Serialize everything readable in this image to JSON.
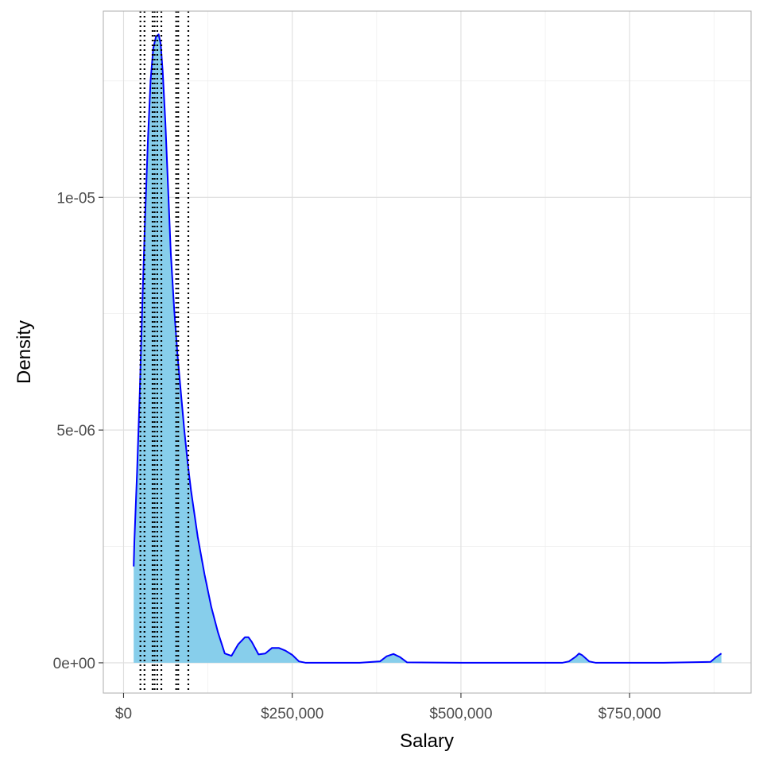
{
  "chart_data": {
    "type": "area",
    "title": "",
    "xlabel": "Salary",
    "ylabel": "Density",
    "xlim": [
      -30000,
      930000
    ],
    "ylim": [
      -6.5e-07,
      1.4e-05
    ],
    "x_ticks": [
      {
        "value": 0,
        "label": "$0"
      },
      {
        "value": 250000,
        "label": "$250,000"
      },
      {
        "value": 500000,
        "label": "$500,000"
      },
      {
        "value": 750000,
        "label": "$750,000"
      }
    ],
    "y_ticks": [
      {
        "value": 0,
        "label": "0e+00"
      },
      {
        "value": 5e-06,
        "label": "5e-06"
      },
      {
        "value": 1e-05,
        "label": "1e-05"
      }
    ],
    "grid": true,
    "fill_color": "#87ceeb",
    "line_color": "#0000ff",
    "series": [
      {
        "x": [
          15000,
          16000,
          20000,
          24000,
          28000,
          32000,
          36000,
          40000,
          44000,
          48000,
          52000,
          55000,
          58000,
          62000,
          66000,
          70000,
          75000,
          80000,
          85000,
          90000,
          95000,
          100000,
          110000,
          120000,
          130000,
          140000,
          150000,
          160000,
          170000,
          180000,
          185000,
          190000,
          200000,
          210000,
          220000,
          230000,
          240000,
          250000,
          260000,
          270000,
          300000,
          350000,
          380000,
          390000,
          400000,
          410000,
          420000,
          500000,
          600000,
          650000,
          660000,
          670000,
          675000,
          680000,
          690000,
          700000,
          800000,
          870000,
          878000,
          886000
        ],
        "y": [
          2.07e-06,
          2.6e-06,
          4.1e-06,
          5.8e-06,
          7.8e-06,
          9.6e-06,
          1.12e-05,
          1.25e-05,
          1.32e-05,
          1.345e-05,
          1.35e-05,
          1.33e-05,
          1.27e-05,
          1.16e-05,
          1.02e-05,
          8.8e-06,
          7.6e-06,
          6.6e-06,
          5.8e-06,
          5e-06,
          4.3e-06,
          3.7e-06,
          2.7e-06,
          1.9e-06,
          1.2e-06,
          6.5e-07,
          2e-07,
          1.5e-07,
          4e-07,
          5.5e-07,
          5.5e-07,
          4.5e-07,
          1.8e-07,
          2e-07,
          3.2e-07,
          3.2e-07,
          2.6e-07,
          1.7e-07,
          3e-08,
          0,
          0,
          0,
          3e-08,
          1.4e-07,
          1.9e-07,
          1.2e-07,
          1e-08,
          0,
          0,
          0,
          3e-08,
          1.3e-07,
          2e-07,
          1.6e-07,
          3e-08,
          0,
          0,
          2e-08,
          1.2e-07,
          2e-07
        ]
      }
    ],
    "vlines": [
      {
        "x": 25000,
        "style": "dotted"
      },
      {
        "x": 31000,
        "style": "dotted"
      },
      {
        "x": 43000,
        "style": "dotted"
      },
      {
        "x": 46000,
        "style": "dotted"
      },
      {
        "x": 50000,
        "style": "dotted"
      },
      {
        "x": 56000,
        "style": "dotted"
      },
      {
        "x": 78000,
        "style": "dotted"
      },
      {
        "x": 81000,
        "style": "dotted"
      },
      {
        "x": 96000,
        "style": "dotted"
      }
    ]
  }
}
